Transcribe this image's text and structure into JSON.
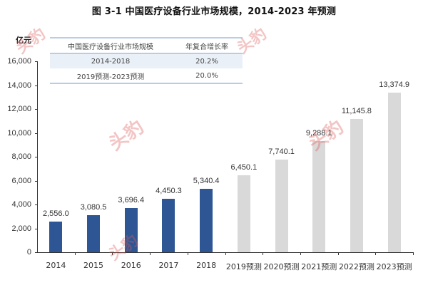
{
  "title": "图  3-1 中国医疗设备行业市场规模，2014-2023 年预测",
  "unit_label": "亿元",
  "table": {
    "headers": [
      "中国医疗设备行业市场规模",
      "年复合增长率"
    ],
    "rows": [
      {
        "period": "2014-2018",
        "cagr": "20.2%"
      },
      {
        "period": "2019预测-2023预测",
        "cagr": "20.0%"
      }
    ]
  },
  "watermark": "头豹",
  "colors": {
    "actual": "#2e5694",
    "forecast": "#d9d9d9",
    "table_line": "#b8cce4",
    "table_band": "#eaf0f8"
  },
  "yaxis": {
    "ticks": [
      "16,000",
      "14,000",
      "12,000",
      "10,000",
      "8,000",
      "6,000",
      "4,000",
      "2,000",
      "0"
    ]
  },
  "chart_data": {
    "type": "bar",
    "title": "图 3-1 中国医疗设备行业市场规模，2014-2023 年预测",
    "xlabel": "",
    "ylabel": "亿元",
    "ylim": [
      0,
      16000
    ],
    "yticks": [
      0,
      2000,
      4000,
      6000,
      8000,
      10000,
      12000,
      14000,
      16000
    ],
    "grid": false,
    "legend": null,
    "categories": [
      "2014",
      "2015",
      "2016",
      "2017",
      "2018",
      "2019预测",
      "2020预测",
      "2021预测",
      "2022预测",
      "2023预测"
    ],
    "values": [
      2556.0,
      3080.5,
      3696.4,
      4450.3,
      5340.4,
      6450.1,
      7740.1,
      9288.1,
      11145.8,
      13374.9
    ],
    "value_labels": [
      "2,556.0",
      "3,080.5",
      "3,696.4",
      "4,450.3",
      "5,340.4",
      "6,450.1",
      "7,740.1",
      "9,288.1",
      "11,145.8",
      "13,374.9"
    ],
    "series_type": [
      "actual",
      "actual",
      "actual",
      "actual",
      "actual",
      "forecast",
      "forecast",
      "forecast",
      "forecast",
      "forecast"
    ],
    "inset_table": {
      "headers": [
        "中国医疗设备行业市场规模",
        "年复合增长率"
      ],
      "rows": [
        [
          "2014-2018",
          "20.2%"
        ],
        [
          "2019预测-2023预测",
          "20.0%"
        ]
      ]
    }
  }
}
